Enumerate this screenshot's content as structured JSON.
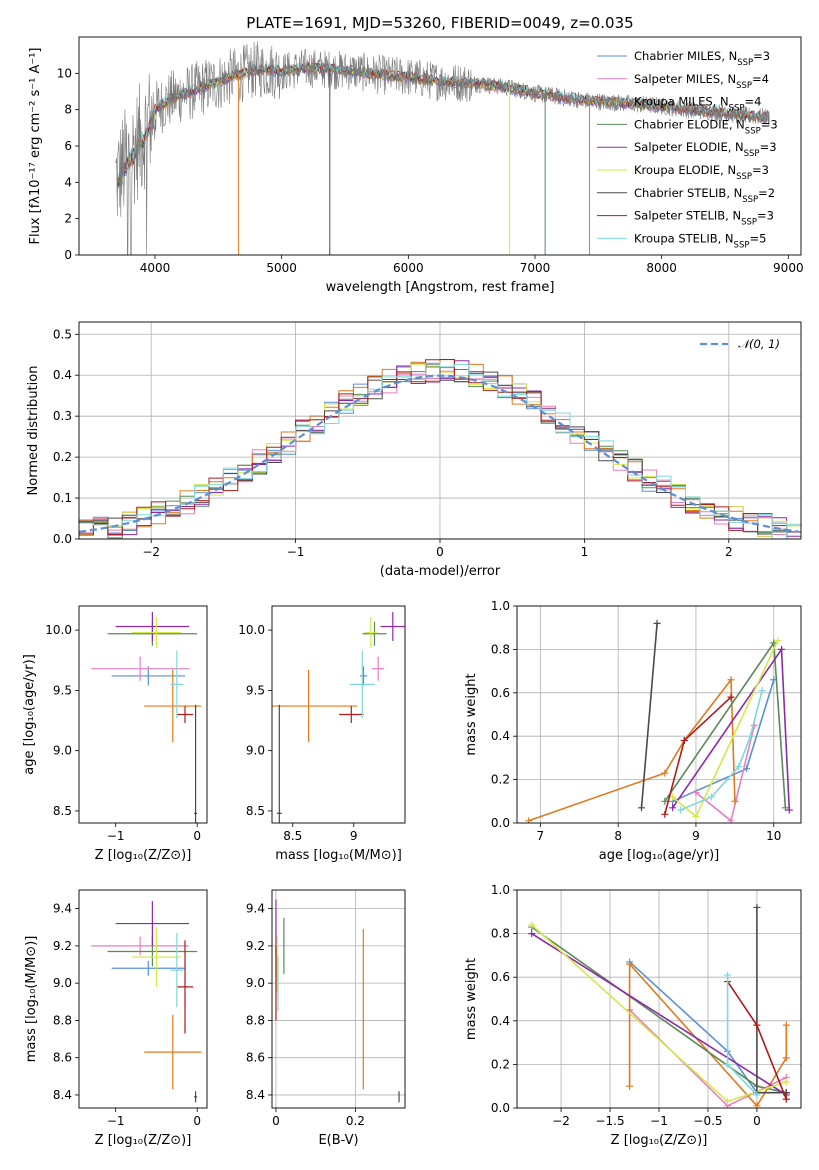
{
  "figure": {
    "title": "PLATE=1691, MJD=53260, FIBERID=0049, z=0.035"
  },
  "colors": {
    "Chabrier MILES": "#5b8fd6",
    "Salpeter MILES": "#e87fbf",
    "Kroupa MILES": "#e07a1f",
    "Chabrier ELODIE": "#5a8a5a",
    "Salpeter ELODIE": "#8e2aa8",
    "Kroupa ELODIE": "#d4e84a",
    "Chabrier STELIB": "#4a4a4a",
    "Salpeter STELIB": "#b01a1a",
    "Kroupa STELIB": "#7ed8dc"
  },
  "chart_data": [
    {
      "id": "spectrum",
      "type": "line",
      "xlabel": "wavelength [Angstrom, rest frame]",
      "ylabel": "Flux [fλ10⁻¹⁷ erg cm⁻² s⁻¹ A⁻¹]",
      "xlim": [
        3400,
        9100
      ],
      "ylim": [
        0,
        12
      ],
      "xticks": [
        4000,
        5000,
        6000,
        7000,
        8000,
        9000
      ],
      "yticks": [
        0,
        2,
        4,
        6,
        8,
        10
      ],
      "legend_position": "top-right",
      "legend": [
        {
          "label": "Chabrier MILES, N",
          "sub": "SSP",
          "suffix": "=3"
        },
        {
          "label": "Salpeter MILES, N",
          "sub": "SSP",
          "suffix": "=4"
        },
        {
          "label": "Kroupa MILES, N",
          "sub": "SSP",
          "suffix": "=4"
        },
        {
          "label": "Chabrier ELODIE, N",
          "sub": "SSP",
          "suffix": "=3"
        },
        {
          "label": "Salpeter ELODIE, N",
          "sub": "SSP",
          "suffix": "=3"
        },
        {
          "label": "Kroupa ELODIE, N",
          "sub": "SSP",
          "suffix": "=3"
        },
        {
          "label": "Chabrier STELIB, N",
          "sub": "SSP",
          "suffix": "=2"
        },
        {
          "label": "Salpeter STELIB, N",
          "sub": "SSP",
          "suffix": "=3"
        },
        {
          "label": "Kroupa STELIB, N",
          "sub": "SSP",
          "suffix": "=5"
        }
      ],
      "continuum_x": [
        3700,
        3800,
        3900,
        4000,
        4100,
        4200,
        4300,
        4400,
        4500,
        4600,
        4700,
        4800,
        4900,
        5000,
        5200,
        5400,
        5600,
        5800,
        6000,
        6200,
        6400,
        6600,
        6800,
        7000,
        7200,
        7400,
        7600,
        7800,
        8000,
        8200,
        8400,
        8600,
        8800
      ],
      "continuum_y": [
        4.2,
        5.5,
        6.5,
        8.0,
        8.5,
        8.8,
        9.0,
        9.3,
        9.5,
        9.8,
        10.0,
        10.2,
        10.2,
        10.1,
        10.3,
        10.2,
        10.1,
        9.9,
        9.8,
        9.6,
        9.5,
        9.4,
        9.2,
        8.9,
        8.7,
        8.5,
        8.4,
        8.3,
        8.2,
        8.0,
        7.9,
        7.7,
        7.6
      ]
    },
    {
      "id": "residuals",
      "type": "line",
      "xlabel": "(data-model)/error",
      "ylabel": "Normed distribution",
      "xlim": [
        -2.5,
        2.5
      ],
      "ylim": [
        0,
        0.53
      ],
      "xticks": [
        -2,
        -1,
        0,
        1,
        2
      ],
      "yticks": [
        0.0,
        0.1,
        0.2,
        0.3,
        0.4,
        0.5
      ],
      "grid": true,
      "legend_position": "top-right",
      "legend": "𝒩(0, 1)"
    },
    {
      "id": "age_vs_Z",
      "type": "scatter",
      "xlabel": "Z [log₁₀(Z/Z⊙)]",
      "ylabel": "age  [log₁₀(age/yr)]",
      "xlim": [
        -1.45,
        0.12
      ],
      "ylim": [
        8.4,
        10.2
      ],
      "xticks": [
        -1,
        0
      ],
      "yticks": [
        8.5,
        9.0,
        9.5,
        10.0
      ],
      "points": [
        {
          "model": "Chabrier MILES",
          "x": -0.6,
          "y": 9.62,
          "xerr": 0.45,
          "yerr": 0.08
        },
        {
          "model": "Salpeter MILES",
          "x": -0.7,
          "y": 9.68,
          "xerr": 0.6,
          "yerr": 0.1
        },
        {
          "model": "Kroupa MILES",
          "x": -0.3,
          "y": 9.37,
          "xerr": 0.35,
          "yerr": 0.3
        },
        {
          "model": "Chabrier ELODIE",
          "x": -0.55,
          "y": 9.97,
          "xerr": 0.55,
          "yerr": 0.1
        },
        {
          "model": "Salpeter ELODIE",
          "x": -0.55,
          "y": 10.03,
          "xerr": 0.45,
          "yerr": 0.12
        },
        {
          "model": "Kroupa ELODIE",
          "x": -0.5,
          "y": 9.98,
          "xerr": 0.3,
          "yerr": 0.13
        },
        {
          "model": "Chabrier STELIB",
          "x": -0.02,
          "y": 8.48,
          "xerr": 0.02,
          "yerr": 0.9
        },
        {
          "model": "Salpeter STELIB",
          "x": -0.15,
          "y": 9.3,
          "xerr": 0.1,
          "yerr": 0.07
        },
        {
          "model": "Kroupa STELIB",
          "x": -0.25,
          "y": 9.55,
          "xerr": 0.08,
          "yerr": 0.28
        }
      ]
    },
    {
      "id": "age_vs_mass",
      "type": "scatter",
      "xlabel": "mass [log₁₀(M/M⊙)]",
      "ylabel": "",
      "xlim": [
        8.33,
        9.42
      ],
      "ylim": [
        8.4,
        10.2
      ],
      "xticks": [
        8.5,
        9.0
      ],
      "yticks": [
        8.5,
        9.0,
        9.5,
        10.0
      ],
      "points": [
        {
          "model": "Chabrier MILES",
          "x": 9.08,
          "y": 9.62,
          "xerr": 0.03,
          "yerr": 0.08
        },
        {
          "model": "Salpeter MILES",
          "x": 9.2,
          "y": 9.68,
          "xerr": 0.05,
          "yerr": 0.1
        },
        {
          "model": "Kroupa MILES",
          "x": 8.63,
          "y": 9.37,
          "xerr": 0.4,
          "yerr": 0.3
        },
        {
          "model": "Chabrier ELODIE",
          "x": 9.17,
          "y": 9.97,
          "xerr": 0.1,
          "yerr": 0.1
        },
        {
          "model": "Salpeter ELODIE",
          "x": 9.32,
          "y": 10.03,
          "xerr": 0.1,
          "yerr": 0.12
        },
        {
          "model": "Kroupa ELODIE",
          "x": 9.14,
          "y": 9.98,
          "xerr": 0.05,
          "yerr": 0.13
        },
        {
          "model": "Chabrier STELIB",
          "x": 8.39,
          "y": 8.48,
          "xerr": 0.02,
          "yerr": 0.9
        },
        {
          "model": "Salpeter STELIB",
          "x": 8.98,
          "y": 9.3,
          "xerr": 0.1,
          "yerr": 0.07
        },
        {
          "model": "Kroupa STELIB",
          "x": 9.07,
          "y": 9.55,
          "xerr": 0.1,
          "yerr": 0.28
        }
      ]
    },
    {
      "id": "weight_vs_age",
      "type": "line",
      "xlabel": "age  [log₁₀(age/yr)]",
      "ylabel": "mass weight",
      "xlim": [
        6.7,
        10.35
      ],
      "ylim": [
        0,
        1.0
      ],
      "xticks": [
        7,
        8,
        9,
        10
      ],
      "yticks": [
        0.0,
        0.2,
        0.4,
        0.6,
        0.8,
        1.0
      ],
      "grid": true,
      "series": [
        {
          "model": "Chabrier MILES",
          "x": [
            8.7,
            9.65,
            10.0
          ],
          "y": [
            0.1,
            0.25,
            0.66
          ]
        },
        {
          "model": "Salpeter MILES",
          "x": [
            9.0,
            9.45,
            9.75
          ],
          "y": [
            0.14,
            0.01,
            0.45
          ]
        },
        {
          "model": "Kroupa MILES",
          "x": [
            6.85,
            8.6,
            8.85,
            9.45,
            9.5
          ],
          "y": [
            0.01,
            0.23,
            0.38,
            0.66,
            0.1
          ]
        },
        {
          "model": "Chabrier ELODIE",
          "x": [
            8.6,
            10.0,
            10.15
          ],
          "y": [
            0.1,
            0.83,
            0.07
          ]
        },
        {
          "model": "Salpeter ELODIE",
          "x": [
            8.7,
            10.1,
            10.2
          ],
          "y": [
            0.07,
            0.8,
            0.06
          ]
        },
        {
          "model": "Kroupa ELODIE",
          "x": [
            8.7,
            9.0,
            10.05
          ],
          "y": [
            0.12,
            0.03,
            0.84
          ]
        },
        {
          "model": "Chabrier STELIB",
          "x": [
            8.3,
            8.5
          ],
          "y": [
            0.07,
            0.92
          ]
        },
        {
          "model": "Salpeter STELIB",
          "x": [
            8.6,
            8.85,
            9.45
          ],
          "y": [
            0.04,
            0.38,
            0.58
          ]
        },
        {
          "model": "Kroupa STELIB",
          "x": [
            8.8,
            9.2,
            9.55,
            9.7,
            9.85
          ],
          "y": [
            0.06,
            0.12,
            0.26,
            0.4,
            0.61
          ]
        }
      ]
    },
    {
      "id": "mass_vs_Z",
      "type": "scatter",
      "xlabel": "Z [log₁₀(Z/Z⊙)]",
      "ylabel": "mass [log₁₀(M/M⊙)]",
      "xlim": [
        -1.45,
        0.12
      ],
      "ylim": [
        8.33,
        9.5
      ],
      "xticks": [
        -1,
        0
      ],
      "yticks": [
        8.4,
        8.6,
        8.8,
        9.0,
        9.2,
        9.4
      ],
      "points": [
        {
          "model": "Chabrier MILES",
          "x": -0.6,
          "y": 9.08,
          "xerr": 0.45,
          "yerr": 0.04
        },
        {
          "model": "Salpeter MILES",
          "x": -0.7,
          "y": 9.2,
          "xerr": 0.6,
          "yerr": 0.05
        },
        {
          "model": "Kroupa MILES",
          "x": -0.3,
          "y": 8.63,
          "xerr": 0.35,
          "yerr": 0.2
        },
        {
          "model": "Chabrier ELODIE",
          "x": -0.55,
          "y": 9.17,
          "xerr": 0.55,
          "yerr": 0.08
        },
        {
          "model": "Salpeter ELODIE",
          "x": -0.55,
          "y": 9.32,
          "xerr": 0.45,
          "yerr": 0.12
        },
        {
          "model": "Kroupa ELODIE",
          "x": -0.5,
          "y": 9.14,
          "xerr": 0.3,
          "yerr": 0.16
        },
        {
          "model": "Chabrier STELIB",
          "x": -0.02,
          "y": 8.39,
          "xerr": 0.02,
          "yerr": 0.03
        },
        {
          "model": "Salpeter STELIB",
          "x": -0.15,
          "y": 8.98,
          "xerr": 0.1,
          "yerr": 0.25
        },
        {
          "model": "Kroupa STELIB",
          "x": -0.25,
          "y": 9.07,
          "xerr": 0.08,
          "yerr": 0.2
        }
      ]
    },
    {
      "id": "mass_vs_ebv",
      "type": "scatter",
      "xlabel": "E(B-V)",
      "ylabel": "",
      "xlim": [
        -0.01,
        0.325
      ],
      "ylim": [
        8.33,
        9.5
      ],
      "xticks": [
        0.0,
        0.2
      ],
      "yticks": [
        8.4,
        8.6,
        8.8,
        9.0,
        9.2,
        9.4
      ],
      "grid": true,
      "points": [
        {
          "model": "Chabrier MILES",
          "x": 0.0,
          "y": 9.08,
          "xerr": 0,
          "yerr": 0.05
        },
        {
          "model": "Salpeter MILES",
          "x": 0.0,
          "y": 9.2,
          "xerr": 0,
          "yerr": 0.1
        },
        {
          "model": "Kroupa MILES",
          "x": 0.22,
          "y": 8.86,
          "xerr": 0,
          "yerr": 0.43
        },
        {
          "model": "Chabrier ELODIE",
          "x": 0.02,
          "y": 9.2,
          "xerr": 0,
          "yerr": 0.15
        },
        {
          "model": "Salpeter ELODIE",
          "x": 0.0,
          "y": 9.3,
          "xerr": 0,
          "yerr": 0.15
        },
        {
          "model": "Kroupa ELODIE",
          "x": 0.003,
          "y": 9.1,
          "xerr": 0,
          "yerr": 0.15
        },
        {
          "model": "Chabrier STELIB",
          "x": 0.31,
          "y": 8.39,
          "xerr": 0,
          "yerr": 0.03
        },
        {
          "model": "Salpeter STELIB",
          "x": 0.0,
          "y": 9.0,
          "xerr": 0,
          "yerr": 0.2
        },
        {
          "model": "Kroupa STELIB",
          "x": 0.005,
          "y": 9.0,
          "xerr": 0,
          "yerr": 0.15
        }
      ]
    },
    {
      "id": "weight_vs_Z",
      "type": "line",
      "xlabel": "Z [log₁₀(Z/Z⊙)]",
      "ylabel": "mass weight",
      "xlim": [
        -2.45,
        0.45
      ],
      "ylim": [
        0,
        1.0
      ],
      "xticks": [
        -2.0,
        -1.5,
        -1.0,
        -0.5,
        0.0
      ],
      "yticks": [
        0.0,
        0.2,
        0.4,
        0.6,
        0.8,
        1.0
      ],
      "grid": true,
      "series": [
        {
          "model": "Chabrier MILES",
          "x": [
            -1.3,
            -0.3,
            0.0
          ],
          "y": [
            0.67,
            0.26,
            0.07
          ]
        },
        {
          "model": "Salpeter MILES",
          "x": [
            -1.3,
            -0.3,
            0.3
          ],
          "y": [
            0.45,
            0.01,
            0.14
          ]
        },
        {
          "model": "Kroupa MILES",
          "x": [
            -1.3,
            -1.3,
            -0.0,
            0.3,
            0.3
          ],
          "y": [
            0.1,
            0.66,
            0.01,
            0.23,
            0.38
          ]
        },
        {
          "model": "Chabrier ELODIE",
          "x": [
            -2.3,
            0.0,
            0.3
          ],
          "y": [
            0.83,
            0.1,
            0.07
          ]
        },
        {
          "model": "Salpeter ELODIE",
          "x": [
            -2.3,
            0.3,
            0.3
          ],
          "y": [
            0.8,
            0.06,
            0.07
          ]
        },
        {
          "model": "Kroupa ELODIE",
          "x": [
            -2.3,
            -0.3,
            0.3
          ],
          "y": [
            0.84,
            0.03,
            0.12
          ]
        },
        {
          "model": "Chabrier STELIB",
          "x": [
            0.0,
            0.0,
            0.3
          ],
          "y": [
            0.92,
            0.07,
            0.07
          ]
        },
        {
          "model": "Salpeter STELIB",
          "x": [
            -0.3,
            0.0,
            0.3
          ],
          "y": [
            0.58,
            0.38,
            0.04
          ]
        },
        {
          "model": "Kroupa STELIB",
          "x": [
            -0.3,
            -0.3,
            0.0
          ],
          "y": [
            0.61,
            0.2,
            0.06
          ]
        }
      ]
    }
  ]
}
